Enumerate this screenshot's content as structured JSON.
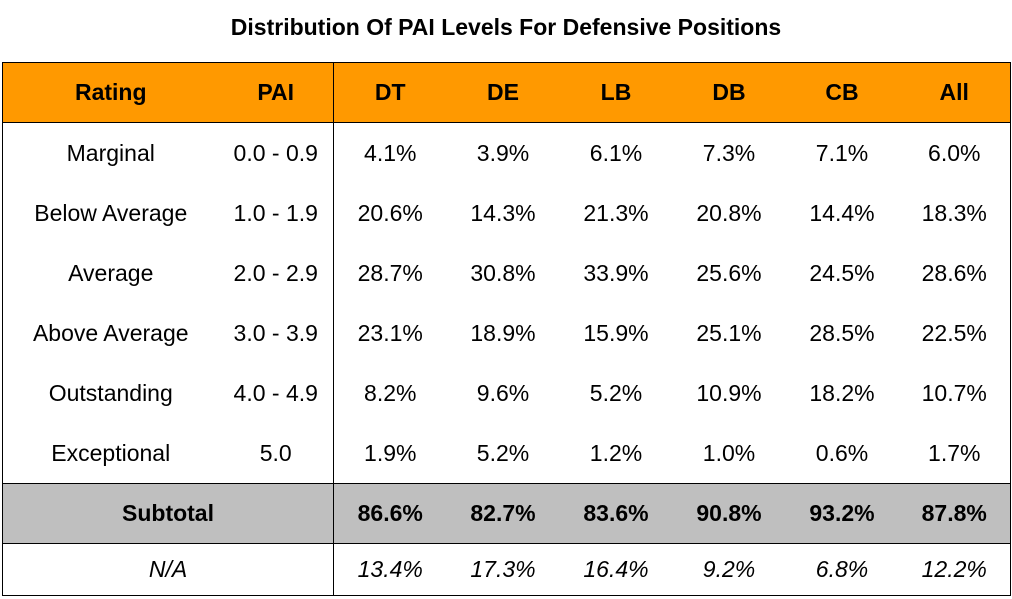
{
  "title": "Distribution Of PAI Levels For Defensive Positions",
  "table": {
    "header": [
      "Rating",
      "PAI",
      "DT",
      "DE",
      "LB",
      "DB",
      "CB",
      "All"
    ],
    "rows": [
      [
        "Marginal",
        "0.0 - 0.9",
        "4.1%",
        "3.9%",
        "6.1%",
        "7.3%",
        "7.1%",
        "6.0%"
      ],
      [
        "Below Average",
        "1.0 - 1.9",
        "20.6%",
        "14.3%",
        "21.3%",
        "20.8%",
        "14.4%",
        "18.3%"
      ],
      [
        "Average",
        "2.0 - 2.9",
        "28.7%",
        "30.8%",
        "33.9%",
        "25.6%",
        "24.5%",
        "28.6%"
      ],
      [
        "Above Average",
        "3.0 - 3.9",
        "23.1%",
        "18.9%",
        "15.9%",
        "25.1%",
        "28.5%",
        "22.5%"
      ],
      [
        "Outstanding",
        "4.0 - 4.9",
        "8.2%",
        "9.6%",
        "5.2%",
        "10.9%",
        "18.2%",
        "10.7%"
      ],
      [
        "Exceptional",
        "5.0",
        "1.9%",
        "5.2%",
        "1.2%",
        "1.0%",
        "0.6%",
        "1.7%"
      ]
    ],
    "subtotal": {
      "label": "Subtotal",
      "values": [
        "86.6%",
        "82.7%",
        "83.6%",
        "90.8%",
        "93.2%",
        "87.8%"
      ]
    },
    "na": {
      "label": "N/A",
      "values": [
        "13.4%",
        "17.3%",
        "16.4%",
        "9.2%",
        "6.8%",
        "12.2%"
      ]
    }
  }
}
